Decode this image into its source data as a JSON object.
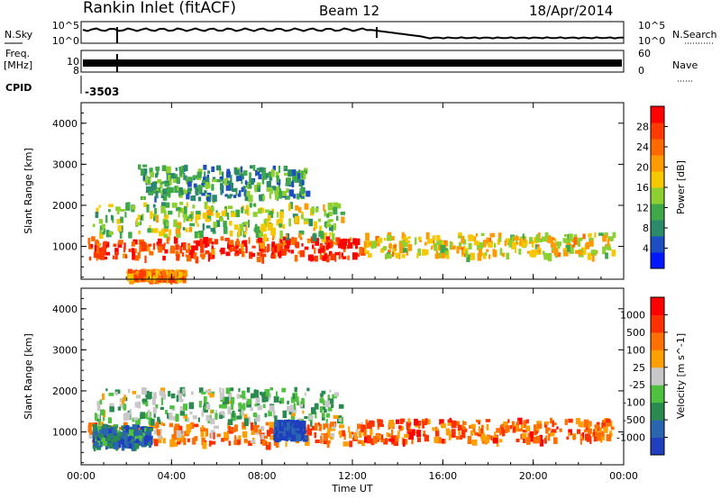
{
  "header": {
    "title": "Rankin Inlet (fitACF)",
    "beam": "Beam 12",
    "date": "18/Apr/2014"
  },
  "status_panels": {
    "nsky_label": "N.Sky",
    "nsky_ticks": [
      "10^5",
      "10^0"
    ],
    "nsearch_label": "N.Search",
    "nsearch_ticks": [
      "10^5",
      "10^0"
    ],
    "freq_label_1": "Freq.",
    "freq_label_2": "[MHz]",
    "freq_ticks": [
      "10",
      "8"
    ],
    "nave_label": "Nave",
    "nave_ticks": [
      "60",
      "0"
    ],
    "cpid_label": "CPID",
    "cpid_value": "-3503"
  },
  "chart_data": [
    {
      "type": "heatmap",
      "name": "power-panel",
      "xlabel": "",
      "ylabel": "Slant Range [km]",
      "x_ticks": [
        "00:00",
        "04:00",
        "08:00",
        "12:00",
        "16:00",
        "20:00",
        "00:00"
      ],
      "y_ticks": [
        1000,
        2000,
        3000,
        4000
      ],
      "ylim": [
        200,
        4500
      ],
      "xlim_hours": [
        0,
        24
      ],
      "colorbar_label": "Power [dB]",
      "colorbar_ticks": [
        4,
        8,
        12,
        16,
        20,
        24,
        28
      ],
      "colorbar_colors": [
        "#0018ff",
        "#1e4fc2",
        "#2a8a6a",
        "#3ea84a",
        "#8ed030",
        "#f5c800",
        "#ff9a00",
        "#ff6a00",
        "#ff3a00",
        "#ff0000"
      ],
      "regions": [
        {
          "t": [
            0.3,
            12.5
          ],
          "r": [
            750,
            1250
          ],
          "level": 0.85
        },
        {
          "t": [
            12.5,
            23.5
          ],
          "r": [
            800,
            1350
          ],
          "level": 0.55
        },
        {
          "t": [
            0.5,
            11.5
          ],
          "r": [
            1300,
            2100
          ],
          "level": 0.45
        },
        {
          "t": [
            2.0,
            4.5
          ],
          "r": [
            250,
            450
          ],
          "level": 0.7
        },
        {
          "t": [
            2.5,
            10
          ],
          "r": [
            2200,
            3000
          ],
          "level": 0.3
        }
      ]
    },
    {
      "type": "heatmap",
      "name": "velocity-panel",
      "xlabel": "Time UT",
      "ylabel": "Slant Range [km]",
      "x_ticks": [
        "00:00",
        "04:00",
        "08:00",
        "12:00",
        "16:00",
        "20:00",
        "00:00"
      ],
      "y_ticks": [
        1000,
        2000,
        3000,
        4000
      ],
      "ylim": [
        200,
        4500
      ],
      "xlim_hours": [
        0,
        24
      ],
      "colorbar_label": "Velocity [m s^-1]",
      "colorbar_ticks": [
        "1000",
        "500",
        "100",
        "25",
        "-25",
        "-100",
        "-500",
        "-1000"
      ],
      "colorbar_colors": [
        "#1f3fbf",
        "#2a66b0",
        "#2a8a50",
        "#50c040",
        "#c8c8c8",
        "#ffa000",
        "#ff7000",
        "#ff3000",
        "#ff0000"
      ],
      "regions": [
        {
          "t": [
            0.3,
            12.5
          ],
          "r": [
            750,
            1250
          ],
          "level": 0.7
        },
        {
          "t": [
            12.5,
            23.5
          ],
          "r": [
            800,
            1350
          ],
          "level": 0.75
        },
        {
          "t": [
            0.5,
            11.5
          ],
          "r": [
            1300,
            2100
          ],
          "level": 0.4
        },
        {
          "t": [
            8.5,
            9.8
          ],
          "r": [
            900,
            1300
          ],
          "level": 0.05
        },
        {
          "t": [
            0.5,
            3
          ],
          "r": [
            700,
            1200
          ],
          "level": 0.2
        }
      ]
    }
  ]
}
